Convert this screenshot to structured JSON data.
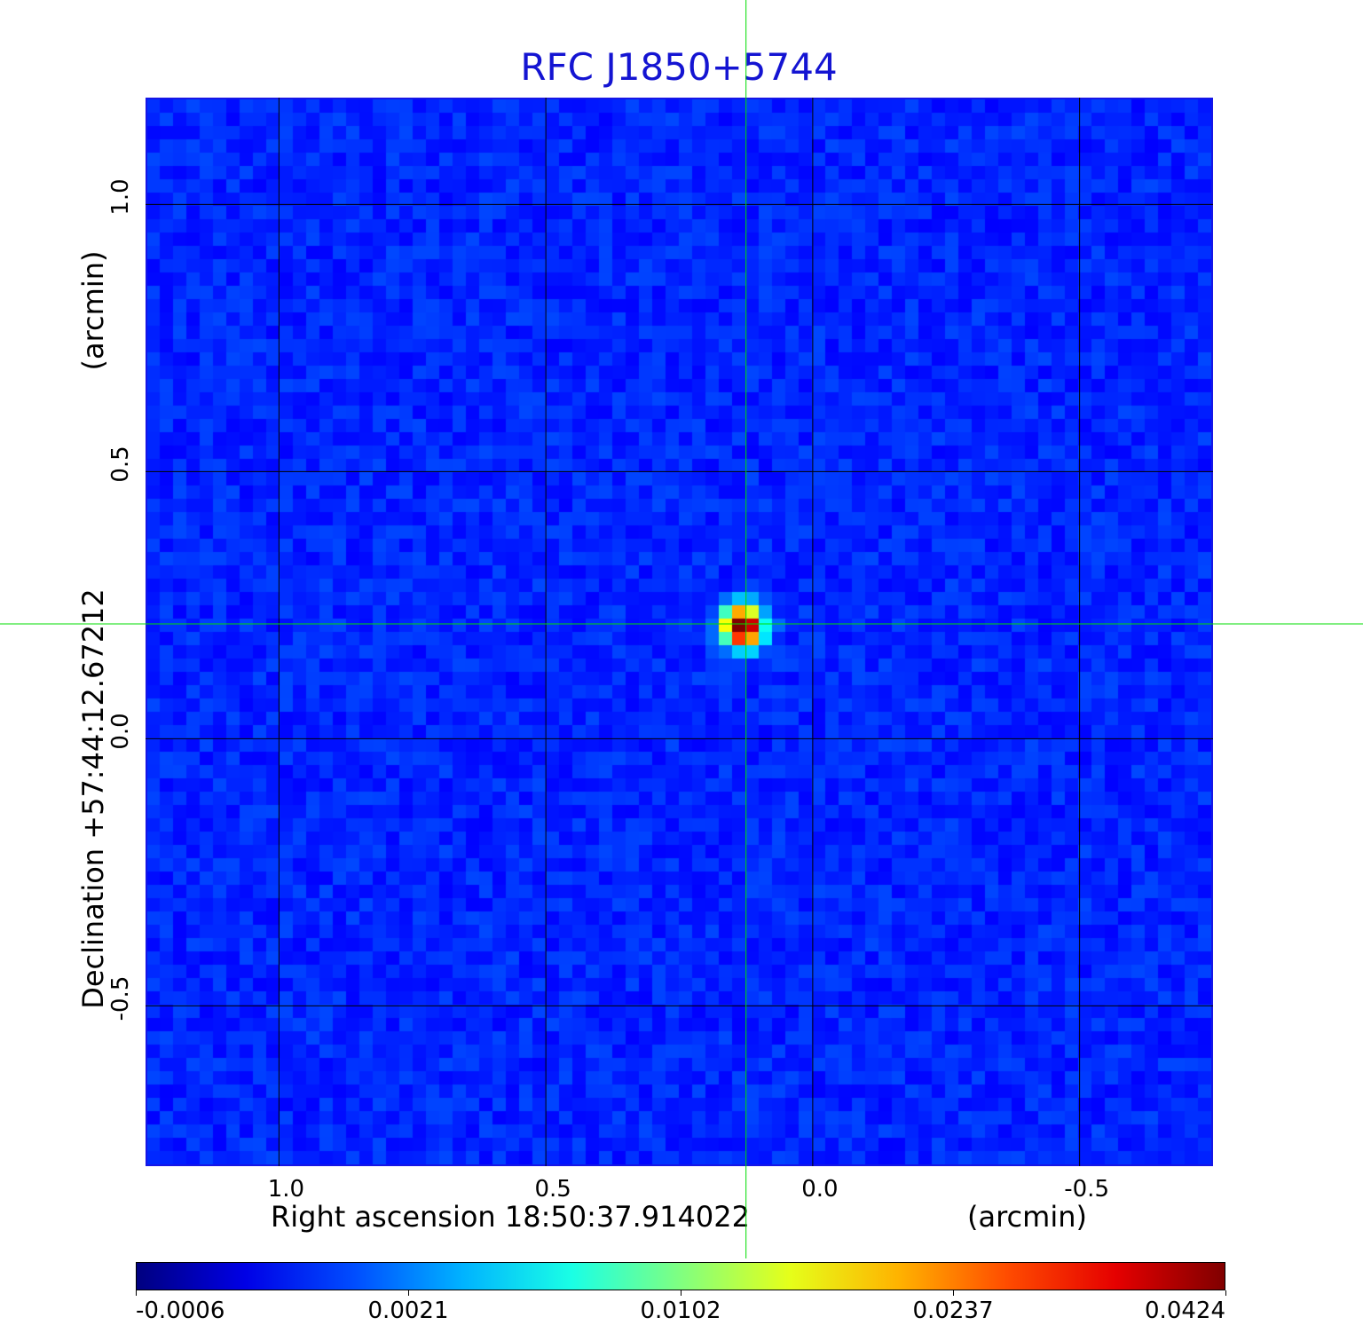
{
  "chart_data": {
    "type": "heatmap",
    "title": "RFC J1850+5744",
    "xlabel": "Right ascension  18:50:37.914022",
    "xlabel_unit": "(arcmin)",
    "ylabel": "Declination  +57:44:12.67212",
    "ylabel_unit": "(arcmin)",
    "xlim": [
      1.25,
      -0.75
    ],
    "ylim": [
      -0.8,
      1.2
    ],
    "x_ticks": [
      {
        "value": 1.0,
        "label": "1.0"
      },
      {
        "value": 0.5,
        "label": "0.5"
      },
      {
        "value": 0.0,
        "label": "0.0"
      },
      {
        "value": -0.5,
        "label": "-0.5"
      }
    ],
    "y_ticks": [
      {
        "value": 1.0,
        "label": "1.0"
      },
      {
        "value": 0.5,
        "label": "0.5"
      },
      {
        "value": 0.0,
        "label": "0.0"
      },
      {
        "value": -0.5,
        "label": "-0.5"
      }
    ],
    "grid": true,
    "source_peak": {
      "x": 0.13,
      "y": 0.21
    },
    "crosshair": {
      "x": 0.125,
      "y": 0.215
    },
    "colormap": "jet",
    "colorbar": {
      "ticks": [
        {
          "value": -0.0006,
          "label": "-0.0006"
        },
        {
          "value": 0.0021,
          "label": "0.0021"
        },
        {
          "value": 0.0102,
          "label": "0.0102"
        },
        {
          "value": 0.0237,
          "label": "0.0237"
        },
        {
          "value": 0.0424,
          "label": "0.0424"
        }
      ],
      "range": [
        -0.0006,
        0.0424
      ]
    }
  },
  "colors": {
    "title": "#1414d2",
    "crosshair": "#00dd00",
    "grid": "#000000",
    "frame": "#1616e6"
  }
}
